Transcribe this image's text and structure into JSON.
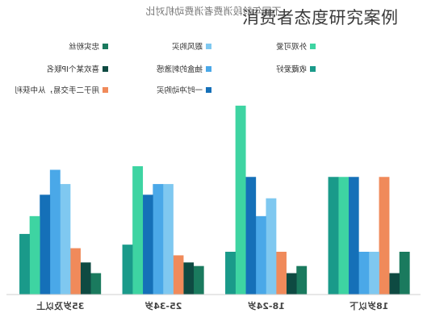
{
  "overlay_title": "消费者态度研究案例",
  "chart_data": {
    "type": "bar",
    "title": "不同年龄段消费者消费动机对比",
    "categories": [
      "18岁以下",
      "18-24岁",
      "25-34岁",
      "35岁及以上"
    ],
    "series": [
      {
        "name": "忠实粉丝",
        "color": "#1a7a5e",
        "values": [
          12,
          8,
          8,
          6
        ]
      },
      {
        "name": "喜欢某个IP联名",
        "color": "#0e4a42",
        "values": [
          6,
          6,
          9,
          9
        ]
      },
      {
        "name": "用于二手交易，从中获利",
        "color": "#f08a5a",
        "values": [
          33,
          12,
          11,
          13
        ]
      },
      {
        "name": "跟风购买",
        "color": "#7fc8f0",
        "values": [
          12,
          27,
          31,
          31
        ]
      },
      {
        "name": "抽盒的刺激感",
        "color": "#4aa8e8",
        "values": [
          12,
          22,
          31,
          35
        ]
      },
      {
        "name": "一时冲动购买",
        "color": "#1570b8",
        "values": [
          33,
          33,
          28,
          28
        ]
      },
      {
        "name": "外观可爱",
        "color": "#3ed4a2",
        "values": [
          33,
          53,
          36,
          22
        ]
      },
      {
        "name": "收藏爱好",
        "color": "#1a9a8a",
        "values": [
          33,
          12,
          14,
          17
        ]
      }
    ],
    "ylim": [
      0,
      60
    ],
    "legend_position": "top",
    "mirrored": true
  }
}
